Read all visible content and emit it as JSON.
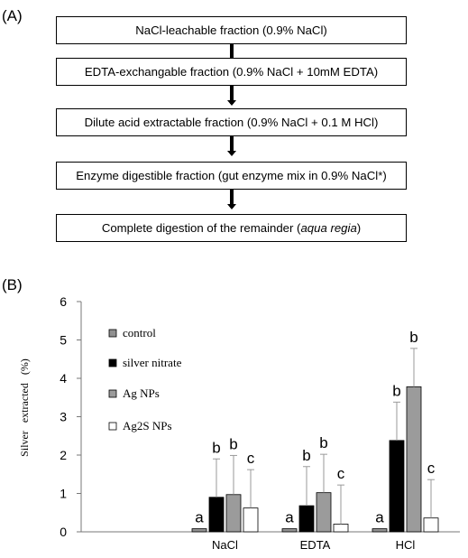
{
  "panel_a": {
    "label": "(A)",
    "steps": [
      {
        "text": "NaCl-leachable fraction (0.9% NaCl)"
      },
      {
        "text": "EDTA-exchangable fraction (0.9% NaCl + 10mM EDTA)"
      },
      {
        "text": "Dilute acid extractable fraction (0.9% NaCl + 0.1 M HCl)"
      },
      {
        "text": "Enzyme digestible fraction (gut enzyme mix in 0.9% NaCl*)"
      },
      {
        "pre": "Complete digestion of the remainder (",
        "em": "aqua regia",
        "post": ")"
      }
    ]
  },
  "panel_b": {
    "label": "(B)"
  },
  "chart_data": {
    "type": "bar",
    "ylabel": "Silver   extracted   (%)",
    "ylim": [
      0,
      6
    ],
    "yticks": [
      0,
      1,
      2,
      3,
      4,
      5,
      6
    ],
    "categories": [
      "NaCl",
      "EDTA",
      "HCl"
    ],
    "grid": false,
    "legend_position": "top-left",
    "error_bars": "upper only",
    "series": [
      {
        "name": "control",
        "color": "#909090",
        "values": [
          0.08,
          0.08,
          0.08
        ],
        "errors": [
          0,
          0,
          0
        ],
        "letters": [
          "a",
          "a",
          "a"
        ]
      },
      {
        "name": "silver nitrate",
        "color": "#000000",
        "values": [
          0.9,
          0.68,
          2.38
        ],
        "errors": [
          1.0,
          1.02,
          1.0
        ],
        "letters": [
          "b",
          "b",
          "b"
        ]
      },
      {
        "name": "Ag NPs",
        "color": "#9b9b9b",
        "values": [
          0.97,
          1.02,
          3.78
        ],
        "errors": [
          1.02,
          1.0,
          1.0
        ],
        "letters": [
          "b",
          "b",
          "b"
        ]
      },
      {
        "name": "Ag2S NPs",
        "color": "#ffffff",
        "values": [
          0.62,
          0.2,
          0.36
        ],
        "errors": [
          1.0,
          1.02,
          1.0
        ],
        "letters": [
          "c",
          "c",
          "c"
        ]
      }
    ]
  }
}
